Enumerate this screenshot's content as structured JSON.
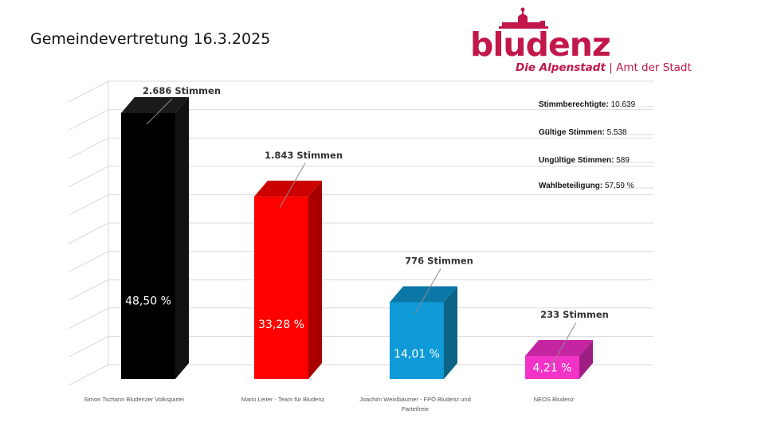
{
  "page": {
    "title": "Gemeindevertretung 16.3.2025"
  },
  "logo": {
    "wordmark": "bludenz",
    "city": "Die Alpenstadt",
    "separator": "|",
    "office": "Amt der Stadt",
    "color": "#c2174b"
  },
  "stats": [
    {
      "label": "Stimmberechtigte:",
      "value": "10.639"
    },
    {
      "label": "Gültige Stimmen:",
      "value": "5.538"
    },
    {
      "label": "Ungültige Stimmen:",
      "value": "589"
    },
    {
      "label": "Wahlbeteiligung:",
      "value": "57,59 %"
    }
  ],
  "chart_data": {
    "type": "bar",
    "title": "Gemeindevertretung 16.3.2025",
    "xlabel": "",
    "ylabel": "",
    "ylim": [
      0,
      50
    ],
    "grid": true,
    "legend": "none",
    "categories": [
      [
        "Simon Tschann Bludenzer Volkspartei"
      ],
      [
        "Mario Leiter - Team für Bludenz"
      ],
      [
        "Joachim Weixlbaumer - FPÖ Bludenz und",
        "Parteifreie"
      ],
      [
        "NEOS Bludenz"
      ]
    ],
    "values": [
      48.5,
      33.28,
      14.01,
      4.21
    ],
    "percent_labels": [
      "48,50 %",
      "33,28 %",
      "14,01 %",
      "4,21 %"
    ],
    "vote_labels": [
      "2.686 Stimmen",
      "1.843 Stimmen",
      "776 Stimmen",
      "233 Stimmen"
    ],
    "colors": [
      {
        "front": "#000000",
        "side": "#111111",
        "top": "#1a1a1a"
      },
      {
        "front": "#ff0000",
        "side": "#a80000",
        "top": "#cc0000"
      },
      {
        "front": "#0d9ad6",
        "side": "#0b6386",
        "top": "#0b77a6"
      },
      {
        "front": "#f233c8",
        "side": "#9e1f84",
        "top": "#c426a2"
      }
    ]
  }
}
